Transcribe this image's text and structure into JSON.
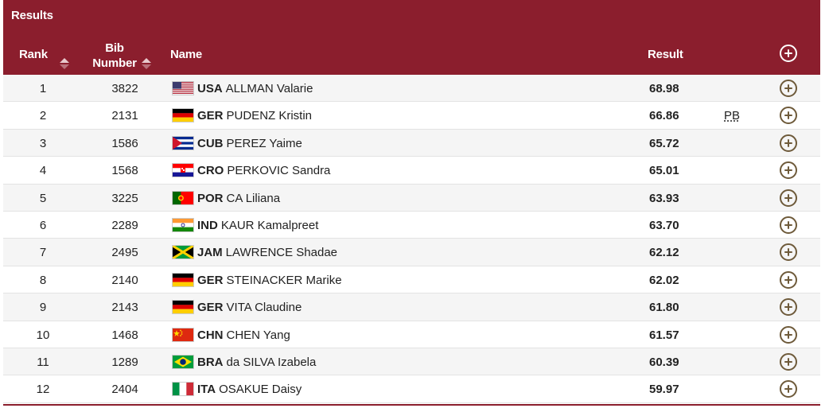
{
  "header": {
    "title": "Results",
    "columns": {
      "rank": "Rank",
      "bib_line1": "Bib",
      "bib_line2": "Number",
      "name": "Name",
      "result": "Result"
    }
  },
  "icons": {
    "sort": "sort-arrows-icon",
    "expand": "plus-circle-icon"
  },
  "colors": {
    "header_bg": "#8b1e2d",
    "plus_icon": "#6e5a3a"
  },
  "rows": [
    {
      "rank": "1",
      "bib": "3822",
      "noc": "USA",
      "name": "ALLMAN Valarie",
      "result": "68.98",
      "note": "",
      "flag": "usa"
    },
    {
      "rank": "2",
      "bib": "2131",
      "noc": "GER",
      "name": "PUDENZ Kristin",
      "result": "66.86",
      "note": "PB",
      "flag": "ger"
    },
    {
      "rank": "3",
      "bib": "1586",
      "noc": "CUB",
      "name": "PEREZ Yaime",
      "result": "65.72",
      "note": "",
      "flag": "cub"
    },
    {
      "rank": "4",
      "bib": "1568",
      "noc": "CRO",
      "name": "PERKOVIC Sandra",
      "result": "65.01",
      "note": "",
      "flag": "cro"
    },
    {
      "rank": "5",
      "bib": "3225",
      "noc": "POR",
      "name": "CA Liliana",
      "result": "63.93",
      "note": "",
      "flag": "por"
    },
    {
      "rank": "6",
      "bib": "2289",
      "noc": "IND",
      "name": "KAUR Kamalpreet",
      "result": "63.70",
      "note": "",
      "flag": "ind"
    },
    {
      "rank": "7",
      "bib": "2495",
      "noc": "JAM",
      "name": "LAWRENCE Shadae",
      "result": "62.12",
      "note": "",
      "flag": "jam"
    },
    {
      "rank": "8",
      "bib": "2140",
      "noc": "GER",
      "name": "STEINACKER Marike",
      "result": "62.02",
      "note": "",
      "flag": "ger"
    },
    {
      "rank": "9",
      "bib": "2143",
      "noc": "GER",
      "name": "VITA Claudine",
      "result": "61.80",
      "note": "",
      "flag": "ger"
    },
    {
      "rank": "10",
      "bib": "1468",
      "noc": "CHN",
      "name": "CHEN Yang",
      "result": "61.57",
      "note": "",
      "flag": "chn"
    },
    {
      "rank": "11",
      "bib": "1289",
      "noc": "BRA",
      "name": "da SILVA Izabela",
      "result": "60.39",
      "note": "",
      "flag": "bra"
    },
    {
      "rank": "12",
      "bib": "2404",
      "noc": "ITA",
      "name": "OSAKUE Daisy",
      "result": "59.97",
      "note": "",
      "flag": "ita"
    }
  ]
}
